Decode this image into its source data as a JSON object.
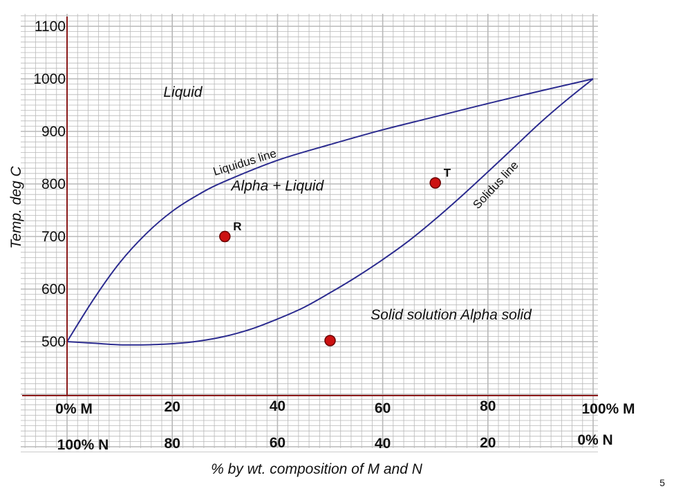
{
  "chart_data": {
    "type": "line",
    "xlabel": "% by wt. composition of M and N",
    "ylabel": "Temp. deg C",
    "xlim": [
      0,
      100
    ],
    "ylim": [
      380,
      1100
    ],
    "grid": true,
    "y_ticks": [
      500,
      600,
      700,
      800,
      900,
      1000,
      1100
    ],
    "x_tick_labels_row1": [
      {
        "x": 0,
        "label": "0% M"
      },
      {
        "x": 20,
        "label": "20"
      },
      {
        "x": 40,
        "label": "40"
      },
      {
        "x": 60,
        "label": "60"
      },
      {
        "x": 80,
        "label": "80"
      },
      {
        "x": 100,
        "label": "100% M"
      }
    ],
    "x_tick_labels_row2": [
      {
        "x": 0,
        "label": "100% N"
      },
      {
        "x": 20,
        "label": "80"
      },
      {
        "x": 40,
        "label": "60"
      },
      {
        "x": 60,
        "label": "40"
      },
      {
        "x": 80,
        "label": "20"
      },
      {
        "x": 100,
        "label": "0% N"
      }
    ],
    "series": [
      {
        "name": "Liquidus line",
        "color": "#2b2b8f",
        "points": [
          [
            0,
            500
          ],
          [
            5,
            580
          ],
          [
            10,
            650
          ],
          [
            15,
            705
          ],
          [
            20,
            748
          ],
          [
            25,
            780
          ],
          [
            30,
            805
          ],
          [
            40,
            845
          ],
          [
            50,
            875
          ],
          [
            60,
            903
          ],
          [
            70,
            928
          ],
          [
            80,
            953
          ],
          [
            90,
            977
          ],
          [
            100,
            1000
          ]
        ]
      },
      {
        "name": "Solidus line",
        "color": "#2b2b8f",
        "points": [
          [
            0,
            500
          ],
          [
            5,
            497
          ],
          [
            10,
            494
          ],
          [
            15,
            494
          ],
          [
            20,
            496
          ],
          [
            25,
            501
          ],
          [
            30,
            510
          ],
          [
            35,
            524
          ],
          [
            40,
            543
          ],
          [
            45,
            565
          ],
          [
            50,
            593
          ],
          [
            55,
            623
          ],
          [
            60,
            656
          ],
          [
            65,
            692
          ],
          [
            70,
            733
          ],
          [
            75,
            777
          ],
          [
            80,
            823
          ],
          [
            85,
            870
          ],
          [
            90,
            917
          ],
          [
            95,
            960
          ],
          [
            100,
            1000
          ]
        ]
      }
    ],
    "points": [
      {
        "label": "R",
        "x": 30,
        "y": 700
      },
      {
        "label": "T",
        "x": 70,
        "y": 802
      },
      {
        "label": "",
        "x": 50,
        "y": 502
      }
    ],
    "point_color": "#cc1111",
    "regions": [
      {
        "label": "Liquid",
        "x": 22,
        "y": 975
      },
      {
        "label": "Alpha + Liquid",
        "x": 40,
        "y": 797
      },
      {
        "label": "Solid solution  Alpha solid",
        "x": 73,
        "y": 551
      }
    ],
    "curve_labels": [
      {
        "label": "Liquidus line",
        "x": 34,
        "y": 834,
        "rotate": -17
      },
      {
        "label": "Solidus line",
        "x": 82,
        "y": 793,
        "rotate": -47
      }
    ],
    "axis_color": "#8b1a1a",
    "grid_color": "#b8b8b8"
  },
  "page_number": "5"
}
